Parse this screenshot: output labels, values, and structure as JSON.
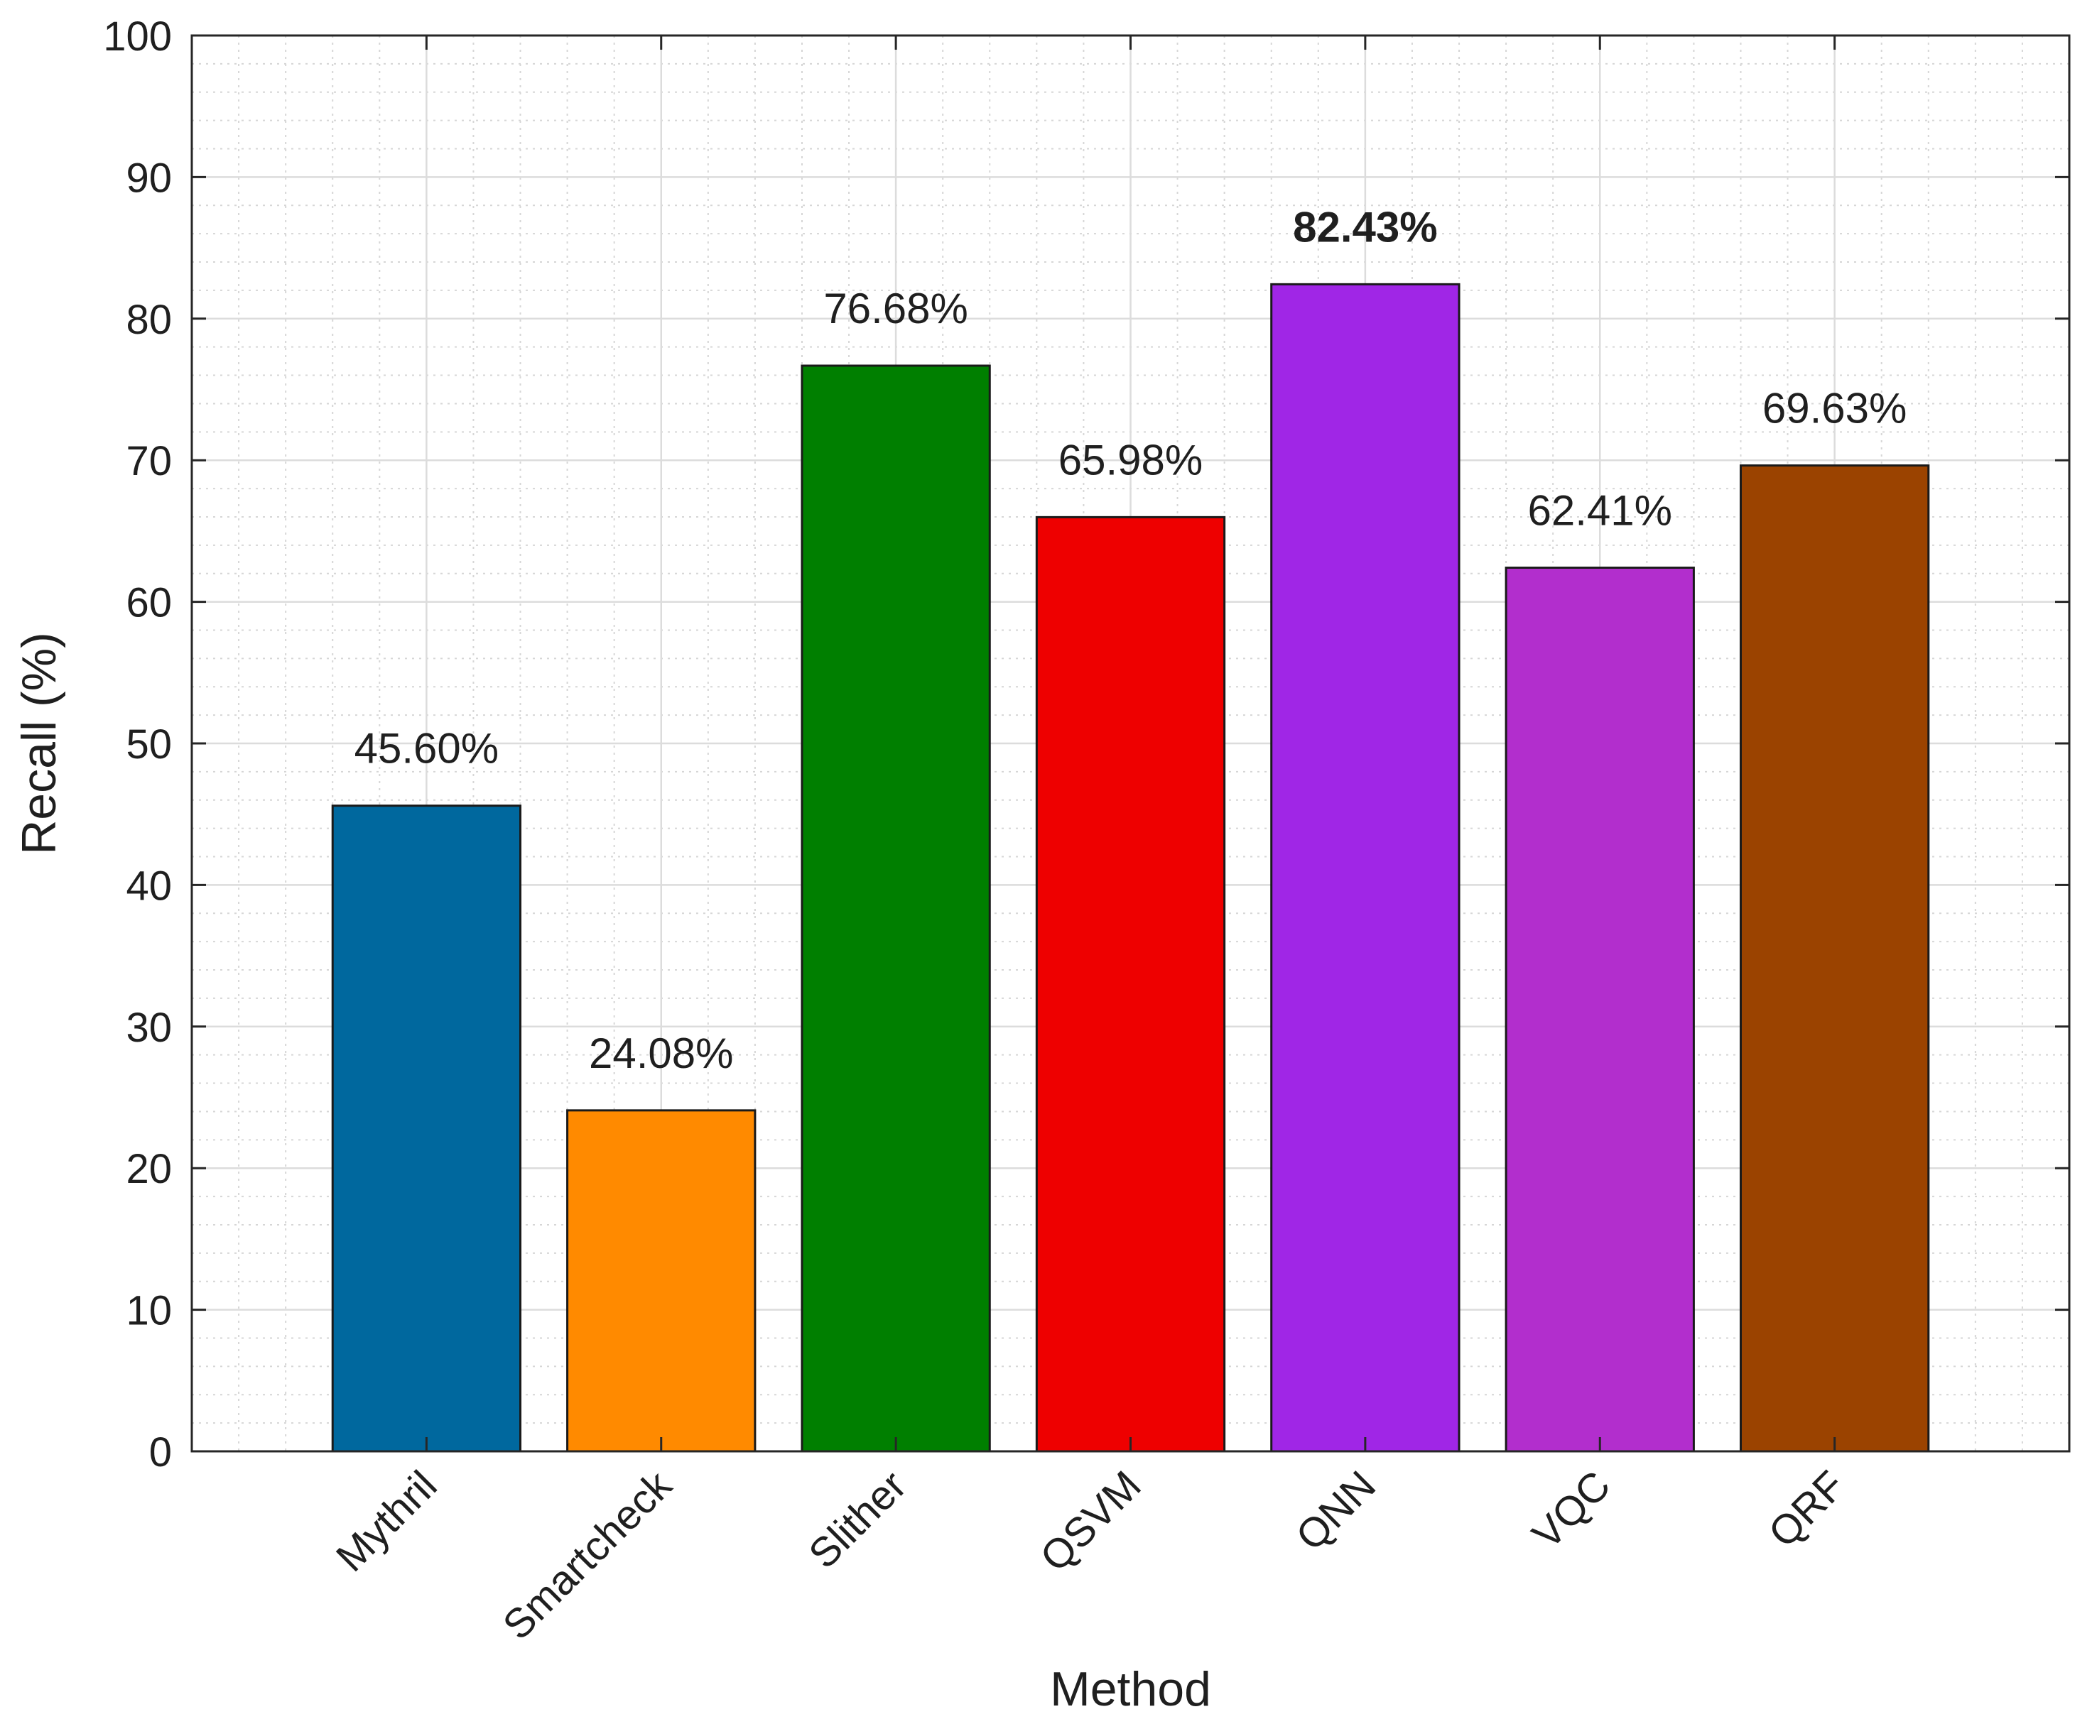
{
  "chart_data": {
    "type": "bar",
    "categories": [
      "Mythril",
      "Smartcheck",
      "Slither",
      "QSVM",
      "QNN",
      "VQC",
      "QRF"
    ],
    "values": [
      45.6,
      24.08,
      76.68,
      65.98,
      82.43,
      62.41,
      69.63
    ],
    "value_labels": [
      "45.60%",
      "24.08%",
      "76.68%",
      "65.98%",
      "82.43%",
      "62.41%",
      "69.63%"
    ],
    "highlighted_label": "82.43%",
    "bar_colors": [
      "#00689e",
      "#ff8a00",
      "#007f00",
      "#ee0000",
      "#a026e6",
      "#b22ecd",
      "#9b4300"
    ],
    "title": "",
    "xlabel": "Method",
    "ylabel": "Recall (%)",
    "ylim": [
      0,
      100
    ],
    "yticks": [
      0,
      10,
      20,
      30,
      40,
      50,
      60,
      70,
      80,
      90,
      100
    ],
    "xlim": [
      0,
      8
    ],
    "grid": true,
    "minor_grid": true,
    "legend": "none"
  }
}
